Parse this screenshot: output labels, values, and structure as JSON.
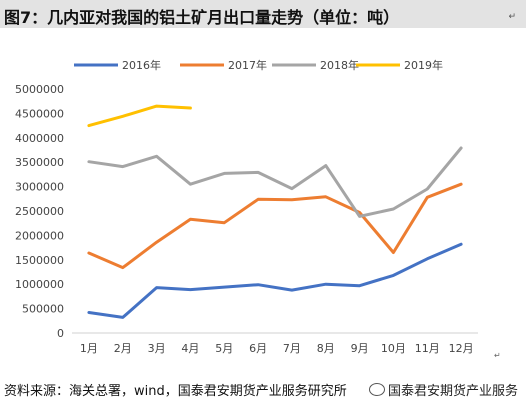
{
  "figure": {
    "title": "图7：几内亚对我国的铝土矿月出口量走势（单位：吨）",
    "source": "资料来源：海关总署，wind，国泰君安期货产业服务研究所",
    "watermark": "国泰君安期货产业服务"
  },
  "chart_data": {
    "type": "line",
    "title": "图7：几内亚对我国的铝土矿月出口量走势（单位：吨）",
    "xlabel": "",
    "ylabel": "",
    "ylim": [
      0,
      5000000
    ],
    "yticks": [
      "0",
      "500000",
      "1000000",
      "1500000",
      "2000000",
      "2500000",
      "3000000",
      "3500000",
      "4000000",
      "4500000",
      "5000000"
    ],
    "categories": [
      "1月",
      "2月",
      "3月",
      "4月",
      "5月",
      "6月",
      "7月",
      "8月",
      "9月",
      "10月",
      "11月",
      "12月"
    ],
    "grid": false,
    "legend_position": "top",
    "series": [
      {
        "name": "2016年",
        "color": "#4472C4",
        "values": [
          420000,
          320000,
          930000,
          890000,
          940000,
          990000,
          880000,
          1000000,
          970000,
          1180000,
          1520000,
          1820000
        ]
      },
      {
        "name": "2017年",
        "color": "#ED7D31",
        "values": [
          1640000,
          1340000,
          1860000,
          2330000,
          2260000,
          2740000,
          2730000,
          2790000,
          2470000,
          1650000,
          2780000,
          3050000
        ]
      },
      {
        "name": "2018年",
        "color": "#A5A5A5",
        "values": [
          3510000,
          3410000,
          3620000,
          3050000,
          3270000,
          3290000,
          2960000,
          3430000,
          2390000,
          2540000,
          2950000,
          3790000
        ]
      },
      {
        "name": "2019年",
        "color": "#FFC000",
        "values": [
          4250000,
          4440000,
          4650000,
          4610000,
          null,
          null,
          null,
          null,
          null,
          null,
          null,
          null
        ]
      }
    ]
  }
}
